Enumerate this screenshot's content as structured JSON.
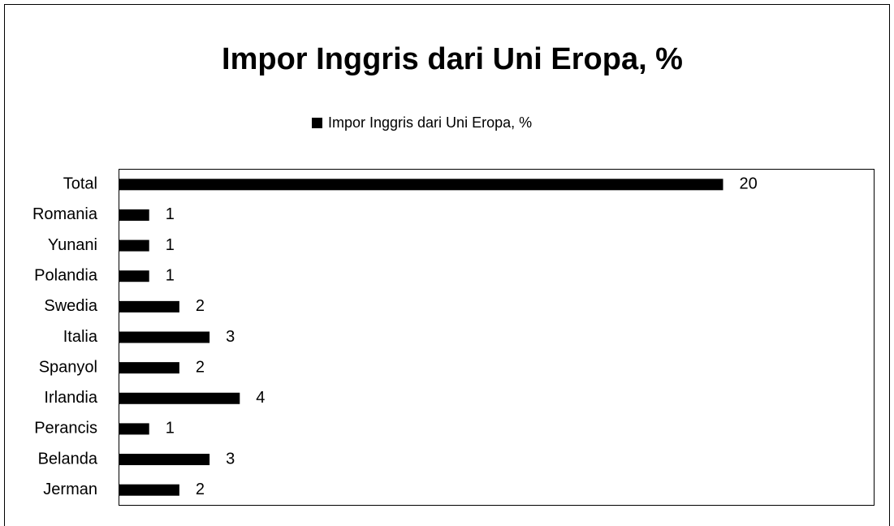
{
  "chart_data": {
    "type": "hbar",
    "title": "Impor Inggris dari Uni Eropa, %",
    "categories": [
      "Total",
      "Romania",
      "Yunani",
      "Polandia",
      "Swedia",
      "Italia",
      "Spanyol",
      "Irlandia",
      "Perancis",
      "Belanda",
      "Jerman"
    ],
    "series": [
      {
        "name": "Impor Inggris dari Uni Eropa, %",
        "color": "#000000",
        "values": [
          20,
          1,
          1,
          1,
          2,
          3,
          2,
          4,
          1,
          3,
          2
        ]
      }
    ],
    "xlim": [
      0,
      25
    ],
    "legend": "top"
  }
}
